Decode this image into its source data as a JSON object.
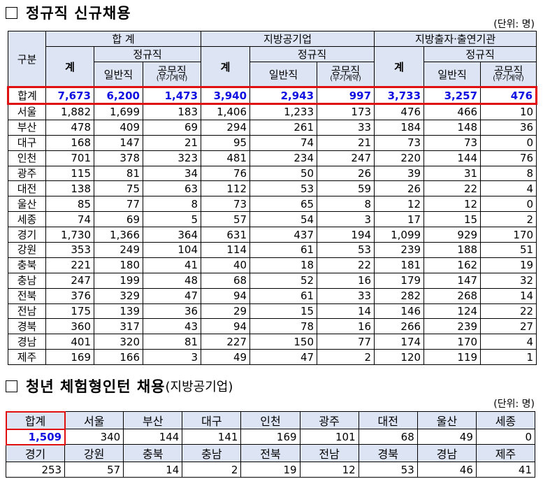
{
  "section1": {
    "title": "정규직 신규채용",
    "unit": "(단위: 명)",
    "headers": {
      "region": "구분",
      "groups": [
        "합 계",
        "지방공기업",
        "지방출자·출연기관"
      ],
      "total": "계",
      "regular": "정규직",
      "general": "일반직",
      "public": "공무직",
      "public_sub": "(무기계약)"
    },
    "total_row": {
      "label": "합계",
      "values": [
        "7,673",
        "6,200",
        "1,473",
        "3,940",
        "2,943",
        "997",
        "3,733",
        "3,257",
        "476"
      ]
    },
    "rows": [
      {
        "region": "서울",
        "values": [
          "1,882",
          "1,699",
          "183",
          "1,406",
          "1,233",
          "173",
          "476",
          "466",
          "10"
        ]
      },
      {
        "region": "부산",
        "values": [
          "478",
          "409",
          "69",
          "294",
          "261",
          "33",
          "184",
          "148",
          "36"
        ]
      },
      {
        "region": "대구",
        "values": [
          "168",
          "147",
          "21",
          "95",
          "74",
          "21",
          "73",
          "73",
          "0"
        ]
      },
      {
        "region": "인천",
        "values": [
          "701",
          "378",
          "323",
          "481",
          "234",
          "247",
          "220",
          "144",
          "76"
        ]
      },
      {
        "region": "광주",
        "values": [
          "115",
          "81",
          "34",
          "76",
          "50",
          "26",
          "39",
          "31",
          "8"
        ]
      },
      {
        "region": "대전",
        "values": [
          "138",
          "75",
          "63",
          "112",
          "53",
          "59",
          "26",
          "22",
          "4"
        ]
      },
      {
        "region": "울산",
        "values": [
          "85",
          "77",
          "8",
          "73",
          "65",
          "8",
          "12",
          "12",
          "0"
        ]
      },
      {
        "region": "세종",
        "values": [
          "74",
          "69",
          "5",
          "57",
          "54",
          "3",
          "17",
          "15",
          "2"
        ]
      },
      {
        "region": "경기",
        "values": [
          "1,730",
          "1,366",
          "364",
          "631",
          "437",
          "194",
          "1,099",
          "929",
          "170"
        ]
      },
      {
        "region": "강원",
        "values": [
          "353",
          "249",
          "104",
          "114",
          "61",
          "53",
          "239",
          "188",
          "51"
        ]
      },
      {
        "region": "충북",
        "values": [
          "221",
          "180",
          "41",
          "40",
          "18",
          "22",
          "181",
          "162",
          "19"
        ]
      },
      {
        "region": "충남",
        "values": [
          "247",
          "199",
          "48",
          "68",
          "52",
          "16",
          "179",
          "147",
          "32"
        ]
      },
      {
        "region": "전북",
        "values": [
          "376",
          "329",
          "47",
          "94",
          "61",
          "33",
          "282",
          "268",
          "14"
        ]
      },
      {
        "region": "전남",
        "values": [
          "175",
          "139",
          "36",
          "29",
          "15",
          "14",
          "146",
          "124",
          "22"
        ]
      },
      {
        "region": "경북",
        "values": [
          "360",
          "317",
          "43",
          "94",
          "78",
          "16",
          "266",
          "239",
          "27"
        ]
      },
      {
        "region": "경남",
        "values": [
          "401",
          "320",
          "81",
          "227",
          "150",
          "77",
          "174",
          "170",
          "4"
        ]
      },
      {
        "region": "제주",
        "values": [
          "169",
          "166",
          "3",
          "49",
          "47",
          "2",
          "120",
          "119",
          "1"
        ]
      }
    ]
  },
  "section2": {
    "title": "청년 체험형인턴 채용",
    "title_sub": "(지방공기업)",
    "unit": "(단위: 명)",
    "row1": {
      "labels": [
        "합계",
        "서울",
        "부산",
        "대구",
        "인천",
        "광주",
        "대전",
        "울산",
        "세종"
      ],
      "values": [
        "1,509",
        "340",
        "144",
        "141",
        "169",
        "101",
        "68",
        "49",
        "0"
      ]
    },
    "row2": {
      "labels": [
        "경기",
        "강원",
        "충북",
        "충남",
        "전북",
        "전남",
        "경북",
        "경남",
        "제주"
      ],
      "values": [
        "253",
        "57",
        "14",
        "2",
        "19",
        "12",
        "53",
        "46",
        "41"
      ]
    }
  }
}
